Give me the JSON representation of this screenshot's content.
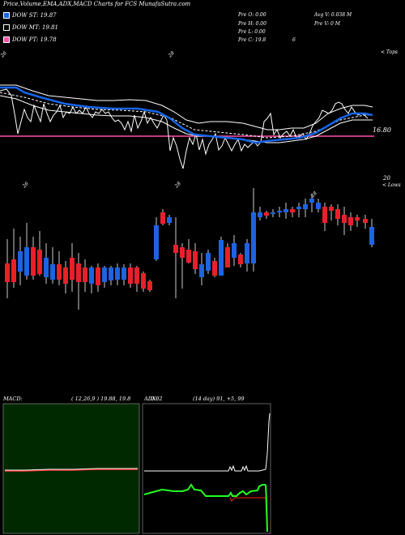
{
  "header": {
    "title": "Price,Volume,EMA,ADX,MACD Charts for FCS MunafaSutra.com"
  },
  "legend": [
    {
      "label": "DOW ST: 19.87",
      "color": "#1565e8"
    },
    {
      "label": "DOW MT: 19.81",
      "color": "#000000"
    },
    {
      "label": "DOW PT: 19.78",
      "color": "#ff4fa8"
    }
  ],
  "stats": {
    "open": "Pre  O: 0.00",
    "high": "Pre  H: 0.00",
    "low": "Pre  L: 0.00",
    "close": "Pre  C: 19.8",
    "extra": "6",
    "avg_vol": "Avg V: 0.038  M",
    "pre_vol": "Pre  V: 0  M"
  },
  "ema_panel": {
    "tick_labels": [
      "26",
      "28"
    ],
    "right_label": "< Tops",
    "price_level": "16.80"
  },
  "candle_panel": {
    "tick_labels": [
      "26",
      "28",
      "28"
    ],
    "right_label": "< Lows",
    "top_value": "20"
  },
  "macd_panel": {
    "label": "MACD:",
    "values": "( 12,26,9 ) 19.88,  19.8"
  },
  "adx_panel": {
    "label": "ADX:",
    "value_overlay": "0.02",
    "values": "(14  day) 91,  +5,  99"
  },
  "chart_data": [
    {
      "type": "line",
      "name": "ema-panel",
      "series": [
        {
          "name": "DOW ST",
          "color": "#1565e8"
        },
        {
          "name": "DOW MT",
          "color": "#ffffff"
        },
        {
          "name": "DOW PT",
          "color": "#ff4fa8"
        }
      ],
      "price_levels": [
        16.8
      ]
    },
    {
      "type": "candlestick",
      "name": "price-panel",
      "up_color": "#1e63e0",
      "down_color": "#e8202a"
    },
    {
      "type": "line",
      "name": "macd-panel",
      "background": "#002900"
    },
    {
      "type": "line",
      "name": "adx-panel",
      "series": [
        {
          "name": "ADX",
          "color": "#ffffff"
        },
        {
          "name": "+DI",
          "color": "#22ff22"
        },
        {
          "name": "-DI",
          "color": "#ff2020"
        }
      ]
    }
  ]
}
